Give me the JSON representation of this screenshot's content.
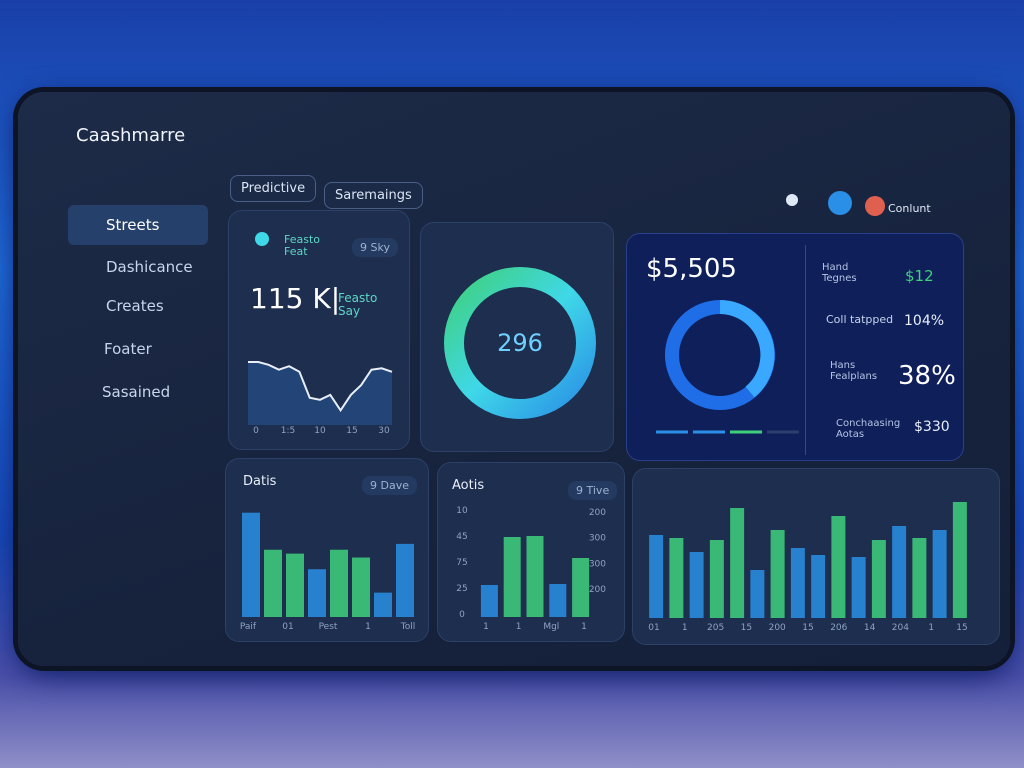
{
  "brand": "Caashmarre",
  "nav": [
    "Streets",
    "Dashicance",
    "Creates",
    "Foater",
    "Sasained"
  ],
  "tabs": [
    "Predictive",
    "Saremaings"
  ],
  "user": "Conlunt",
  "trend_card": {
    "title": "Feasto\nFeat",
    "badge": "9 Sky",
    "value": "115 K|",
    "subtitle": "Feasto\nSay",
    "chart": {
      "type": "line",
      "color": "#e8eef8",
      "ylim": [
        0,
        100
      ],
      "values": [
        90,
        90,
        86,
        79,
        84,
        76,
        39,
        36,
        43,
        21,
        43,
        57,
        79,
        81,
        76
      ],
      "x_labels": [
        "0",
        "1:5",
        "10",
        "15",
        "30"
      ]
    }
  },
  "ring_card": {
    "value": "296"
  },
  "summary_card": {
    "value": "$5,505",
    "items": [
      {
        "label": "Hand\nTegnes",
        "value": "$12"
      },
      {
        "label": "Coll tatpped",
        "value": "104%"
      },
      {
        "label": "Hans\nFealplans",
        "value": "38%"
      },
      {
        "label": "Conchaasing\nAotas",
        "value": "$330"
      }
    ]
  },
  "bar_cards": [
    {
      "title": "Datis",
      "badge": "9 Dave",
      "chart": {
        "type": "bar",
        "ylim": [
          0,
          120
        ],
        "values": [
          107,
          69,
          65,
          49,
          69,
          61,
          25,
          75
        ],
        "colors": [
          "#2a8fe6",
          "#3fd07c",
          "#3fd07c",
          "#2a8fe6",
          "#3fd07c",
          "#3fd07c",
          "#2a8fe6",
          "#2a8fe6"
        ],
        "x_labels": [
          "Paif",
          "01",
          "Pest",
          "1",
          "Toll"
        ]
      }
    },
    {
      "title": "Aotis",
      "badge": "9 Tive",
      "left_labels": [
        "10",
        "45",
        "75",
        "25",
        "0"
      ],
      "right_labels": [
        "200",
        "300",
        "300",
        "200"
      ],
      "chart": {
        "type": "bar",
        "ylim": [
          0,
          100
        ],
        "values": [
          32,
          80,
          81,
          33,
          59
        ],
        "colors": [
          "#2a8fe6",
          "#3fd07c",
          "#3fd07c",
          "#2a8fe6",
          "#3fd07c"
        ],
        "x_labels": [
          "1",
          "1",
          "Mgl",
          "1"
        ]
      }
    },
    {
      "chart": {
        "type": "bar",
        "ylim": [
          0,
          120
        ],
        "values": [
          83,
          80,
          66,
          78,
          110,
          48,
          88,
          70,
          63,
          102,
          61,
          78,
          92,
          80,
          88,
          116
        ],
        "colors": [
          "#2a8fe6",
          "#3fd07c",
          "#2a8fe6",
          "#3fd07c",
          "#3fd07c",
          "#2a8fe6",
          "#3fd07c",
          "#2a8fe6",
          "#2a8fe6",
          "#3fd07c",
          "#2a8fe6",
          "#3fd07c",
          "#2a8fe6",
          "#3fd07c",
          "#2a8fe6",
          "#3fd07c"
        ],
        "x_labels": [
          "01",
          "1",
          "205",
          "15",
          "200",
          "15",
          "206",
          "14",
          "204",
          "1",
          "15"
        ]
      }
    }
  ]
}
